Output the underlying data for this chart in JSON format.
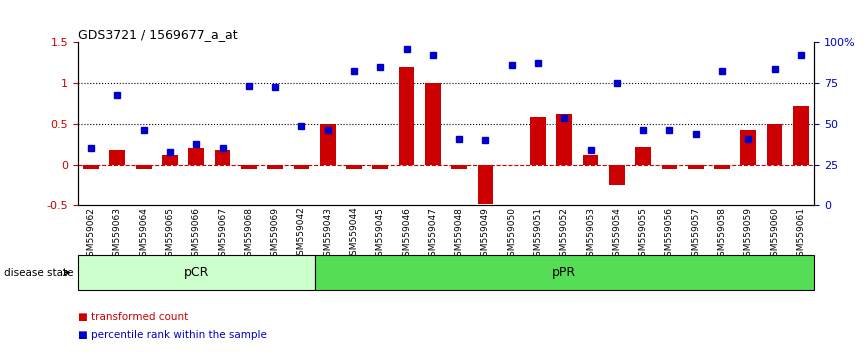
{
  "title": "GDS3721 / 1569677_a_at",
  "samples": [
    "GSM559062",
    "GSM559063",
    "GSM559064",
    "GSM559065",
    "GSM559066",
    "GSM559067",
    "GSM559068",
    "GSM559069",
    "GSM559042",
    "GSM559043",
    "GSM559044",
    "GSM559045",
    "GSM559046",
    "GSM559047",
    "GSM559048",
    "GSM559049",
    "GSM559050",
    "GSM559051",
    "GSM559052",
    "GSM559053",
    "GSM559054",
    "GSM559055",
    "GSM559056",
    "GSM559057",
    "GSM559058",
    "GSM559059",
    "GSM559060",
    "GSM559061"
  ],
  "bar_values": [
    -0.05,
    0.18,
    -0.05,
    0.12,
    0.2,
    0.18,
    -0.05,
    -0.05,
    -0.05,
    0.5,
    -0.05,
    -0.05,
    1.2,
    1.0,
    -0.05,
    -0.48,
    0.0,
    0.58,
    0.62,
    0.12,
    -0.25,
    0.22,
    -0.05,
    -0.05,
    -0.05,
    0.42,
    0.5,
    0.72
  ],
  "blue_values": [
    0.2,
    0.85,
    0.42,
    0.15,
    0.25,
    0.2,
    0.97,
    0.95,
    0.48,
    0.43,
    1.15,
    1.2,
    1.42,
    1.35,
    0.32,
    0.3,
    1.22,
    1.25,
    0.57,
    0.18,
    1.0,
    0.42,
    0.42,
    0.38,
    1.15,
    0.32,
    1.18,
    1.35
  ],
  "pcr_count": 9,
  "ppr_count": 19,
  "bar_color": "#cc0000",
  "blue_color": "#0000cc",
  "pcr_color": "#ccffcc",
  "ppr_color": "#55dd55",
  "ylim_left": [
    -0.5,
    1.5
  ],
  "ylim_right": [
    0,
    100
  ],
  "right_ticks": [
    0,
    25,
    50,
    75,
    100
  ],
  "right_tick_labels": [
    "0",
    "25",
    "50",
    "75",
    "100%"
  ],
  "left_yticks": [
    -0.5,
    0.0,
    0.5,
    1.0,
    1.5
  ],
  "left_ytick_labels": [
    "-0.5",
    "0",
    "0.5",
    "1",
    "1.5"
  ]
}
